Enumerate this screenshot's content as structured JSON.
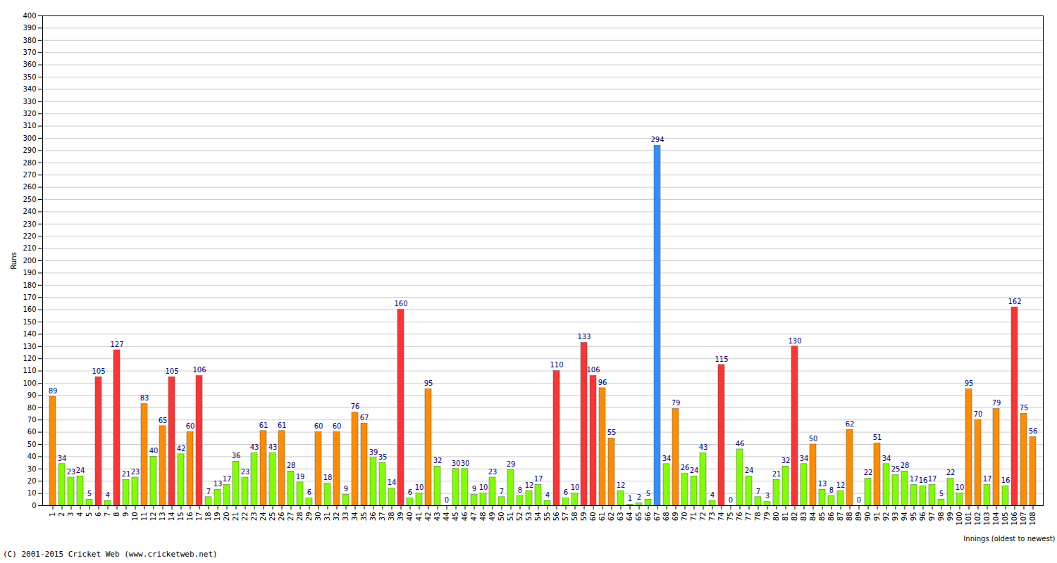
{
  "chart_data": {
    "type": "bar",
    "x_label": "Innings (oldest to newest)",
    "y_label": "Runs",
    "caption": "(C) 2001-2015 Cricket Web (www.cricketweb.net)",
    "categories": [
      "1",
      "2",
      "3",
      "4",
      "5",
      "6",
      "7",
      "8",
      "9",
      "10",
      "11",
      "12",
      "13",
      "14",
      "15",
      "16",
      "17",
      "18",
      "19",
      "20",
      "21",
      "22",
      "23",
      "24",
      "25",
      "26",
      "27",
      "28",
      "29",
      "30",
      "31",
      "32",
      "33",
      "34",
      "35",
      "36",
      "37",
      "38",
      "39",
      "40",
      "41",
      "42",
      "43",
      "44",
      "45",
      "46",
      "47",
      "48",
      "49",
      "50",
      "51",
      "52",
      "53",
      "54",
      "55",
      "56",
      "57",
      "58",
      "59",
      "60",
      "61",
      "62",
      "63",
      "64",
      "65",
      "66",
      "67",
      "68",
      "69",
      "70",
      "71",
      "72",
      "73",
      "74",
      "75",
      "76",
      "77",
      "78",
      "79",
      "80",
      "81",
      "82",
      "83",
      "84",
      "85",
      "86",
      "87",
      "88",
      "89",
      "90",
      "91",
      "92",
      "93",
      "94",
      "95",
      "96",
      "97",
      "98",
      "99",
      "100",
      "101",
      "102",
      "103",
      "104",
      "105",
      "106",
      "107",
      "108"
    ],
    "values": [
      89,
      34,
      23,
      24,
      5,
      105,
      4,
      127,
      21,
      23,
      83,
      40,
      65,
      105,
      42,
      60,
      106,
      7,
      13,
      17,
      36,
      23,
      43,
      61,
      43,
      61,
      28,
      19,
      6,
      60,
      18,
      60,
      9,
      76,
      67,
      39,
      35,
      14,
      160,
      6,
      10,
      95,
      32,
      0,
      30,
      30,
      9,
      10,
      23,
      7,
      29,
      8,
      12,
      17,
      4,
      110,
      6,
      10,
      133,
      106,
      96,
      55,
      12,
      1,
      2,
      5,
      294,
      34,
      79,
      26,
      24,
      43,
      4,
      115,
      0,
      46,
      24,
      7,
      3,
      21,
      32,
      130,
      34,
      50,
      13,
      8,
      12,
      62,
      0,
      22,
      51,
      34,
      25,
      28,
      17,
      16,
      17,
      5,
      22,
      10,
      95,
      70,
      17,
      79,
      16,
      162,
      75,
      56
    ],
    "colors": [
      "#ff8c00",
      "#80ff00",
      "#80ff00",
      "#80ff00",
      "#80ff00",
      "#ff3333",
      "#80ff00",
      "#ff3333",
      "#80ff00",
      "#80ff00",
      "#ff8c00",
      "#80ff00",
      "#ff8c00",
      "#ff3333",
      "#80ff00",
      "#ff8c00",
      "#ff3333",
      "#80ff00",
      "#80ff00",
      "#80ff00",
      "#80ff00",
      "#80ff00",
      "#80ff00",
      "#ff8c00",
      "#80ff00",
      "#ff8c00",
      "#80ff00",
      "#80ff00",
      "#80ff00",
      "#ff8c00",
      "#80ff00",
      "#ff8c00",
      "#80ff00",
      "#ff8c00",
      "#ff8c00",
      "#80ff00",
      "#80ff00",
      "#80ff00",
      "#ff3333",
      "#80ff00",
      "#80ff00",
      "#ff8c00",
      "#80ff00",
      "#80ff00",
      "#80ff00",
      "#80ff00",
      "#80ff00",
      "#80ff00",
      "#80ff00",
      "#80ff00",
      "#80ff00",
      "#80ff00",
      "#80ff00",
      "#80ff00",
      "#80ff00",
      "#ff3333",
      "#80ff00",
      "#80ff00",
      "#ff3333",
      "#ff3333",
      "#ff8c00",
      "#ff8c00",
      "#80ff00",
      "#80ff00",
      "#80ff00",
      "#80ff00",
      "#2e8fff",
      "#80ff00",
      "#ff8c00",
      "#80ff00",
      "#80ff00",
      "#80ff00",
      "#80ff00",
      "#ff3333",
      "#80ff00",
      "#80ff00",
      "#80ff00",
      "#80ff00",
      "#80ff00",
      "#80ff00",
      "#80ff00",
      "#ff3333",
      "#80ff00",
      "#ff8c00",
      "#80ff00",
      "#80ff00",
      "#80ff00",
      "#ff8c00",
      "#80ff00",
      "#80ff00",
      "#ff8c00",
      "#80ff00",
      "#80ff00",
      "#80ff00",
      "#80ff00",
      "#80ff00",
      "#80ff00",
      "#80ff00",
      "#80ff00",
      "#80ff00",
      "#ff8c00",
      "#ff8c00",
      "#80ff00",
      "#ff8c00",
      "#80ff00",
      "#ff3333",
      "#ff8c00",
      "#ff8c00"
    ],
    "ylim": [
      0,
      400
    ],
    "yticks": [
      0,
      10,
      20,
      30,
      40,
      50,
      60,
      70,
      80,
      90,
      100,
      110,
      120,
      130,
      140,
      150,
      160,
      170,
      180,
      190,
      200,
      210,
      220,
      230,
      240,
      250,
      260,
      270,
      280,
      290,
      300,
      310,
      320,
      330,
      340,
      350,
      360,
      370,
      380,
      390,
      400
    ],
    "grid": true,
    "data_labels": true
  }
}
